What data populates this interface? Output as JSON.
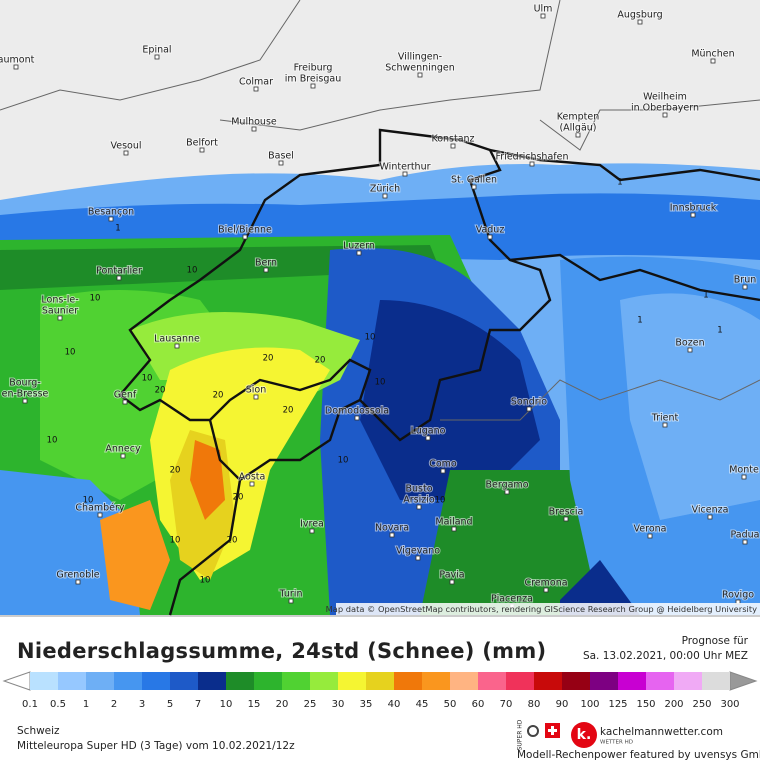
{
  "map": {
    "cities": [
      [
        "Ulm"
      ],
      [
        "Augsburg"
      ],
      [
        "Epinal"
      ],
      [
        "aumont"
      ],
      [
        "Villingen-",
        "Schwenningen"
      ],
      [
        "München"
      ],
      [
        "Freiburg",
        "im Breisgau"
      ],
      [
        "Colmar"
      ],
      [
        "Weilheim",
        "in Oberbayern"
      ],
      [
        "Mulhouse"
      ],
      [
        "Kempten",
        "(Allgäu)"
      ],
      [
        "Vesoul"
      ],
      [
        "Belfort"
      ],
      [
        "Konstanz"
      ],
      [
        "Basel"
      ],
      [
        "Winterthur"
      ],
      [
        "Friedrichshafen"
      ],
      [
        "St. Gallen"
      ],
      [
        "Zürich"
      ],
      [
        "Besançon"
      ],
      [
        "Innsbruck"
      ],
      [
        "Vaduz"
      ],
      [
        "Biel/Bienne"
      ],
      [
        "Luzern"
      ],
      [
        "Bern"
      ],
      [
        "Pontarlier"
      ],
      [
        "Lons-le-",
        "Saunier"
      ],
      [
        "Brun"
      ],
      [
        "Bozen"
      ],
      [
        "Lausanne"
      ],
      [
        "Bourg-",
        "en-Bresse"
      ],
      [
        "Sion"
      ],
      [
        "Genf"
      ],
      [
        "Domodossola"
      ],
      [
        "Sondrio"
      ],
      [
        "Lugano"
      ],
      [
        "Trient"
      ],
      [
        "Annecy"
      ],
      [
        "Como"
      ],
      [
        "Aosta"
      ],
      [
        "Bergamo"
      ],
      [
        "Monte"
      ],
      [
        "Busto",
        "Arsizio"
      ],
      [
        "Chambéry"
      ],
      [
        "Ivrea"
      ],
      [
        "Novara"
      ],
      [
        "Mailand"
      ],
      [
        "Brescia"
      ],
      [
        "Vicenza"
      ],
      [
        "Verona"
      ],
      [
        "Padua"
      ],
      [
        "Vigevano"
      ],
      [
        "Grenoble"
      ],
      [
        "Pavia"
      ],
      [
        "Cremona"
      ],
      [
        "Rovigo"
      ],
      [
        "Turin"
      ],
      [
        "Piacenza"
      ]
    ],
    "contour_labels": [
      1,
      1,
      1,
      1,
      1,
      10,
      10,
      10,
      10,
      10,
      10,
      10,
      10,
      10,
      20,
      20,
      20,
      20,
      20,
      20,
      20,
      20,
      10,
      10,
      10
    ],
    "attribution": "Map data © OpenStreetMap contributors, rendering GIScience Research Group @ Heidelberg University"
  },
  "legend": {
    "title": "Niederschlagssumme, 24std (Schnee) (mm)",
    "forecast_label": "Prognose für",
    "forecast_time": "Sa. 13.02.2021, 00:00 Uhr MEZ",
    "labels": [
      0.1,
      0.5,
      1,
      2,
      3,
      5,
      7,
      10,
      15,
      20,
      25,
      30,
      35,
      40,
      45,
      50,
      60,
      70,
      80,
      90,
      100,
      125,
      150,
      200,
      250,
      300
    ],
    "colors": [
      "#b9e1ff",
      "#96c8ff",
      "#6eaff5",
      "#4696f0",
      "#2878e6",
      "#1e5ac8",
      "#0a2d8c",
      "#1e8c28",
      "#2db42d",
      "#50d232",
      "#96eb3c",
      "#f5f532",
      "#e6d21e",
      "#f0780a",
      "#fa961e",
      "#ffb482",
      "#fa648c",
      "#f0325a",
      "#c80a0a",
      "#960014",
      "#7d0082",
      "#c800d2",
      "#e664f0",
      "#f0aaf5",
      "#dcdcdc"
    ],
    "region": "Schweiz",
    "model": "Mitteleuropa Super HD (3 Tage) vom 10.02.2021/12z",
    "brand": "kachelmannwetter.com",
    "brand_sub": "WETTER HD",
    "super_hd": "SUPER HD",
    "credit": "Modell-Rechenpower featured by uvensys GmbH"
  }
}
